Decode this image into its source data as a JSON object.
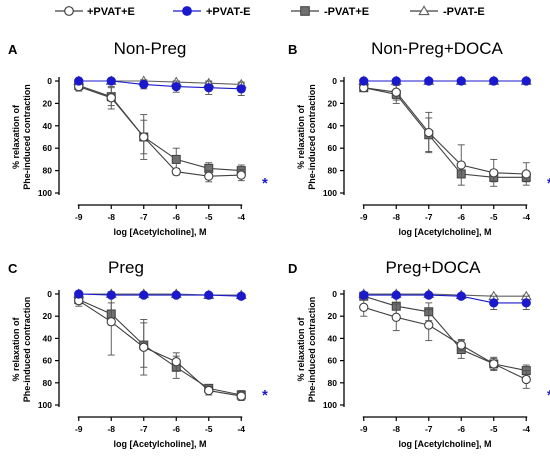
{
  "legend": {
    "entries": [
      {
        "label": "+PVAT+E",
        "marker": "circle-open",
        "color": "#404040"
      },
      {
        "label": "+PVAT-E",
        "marker": "circle-filled",
        "color": "#1a1acc"
      },
      {
        "label": "-PVAT+E",
        "marker": "square-filled",
        "color": "#707070"
      },
      {
        "label": "-PVAT-E",
        "marker": "triangle-open",
        "color": "#606060"
      }
    ]
  },
  "colors": {
    "pvat_plus_e": "#404040",
    "pvat_plus_minus_e": "#1a1acc",
    "pvat_minus_e": "#707070",
    "pvat_minus_minus_e": "#606060",
    "significance": "#1a1acc"
  },
  "chart_data": [
    {
      "type": "line",
      "letter": "A",
      "title": "Non-Preg",
      "xlabel": "log [Acetylcholine], M",
      "ylabel": [
        "% relaxation of",
        "Phe-induced contraction"
      ],
      "x": [
        -9,
        -8,
        -7,
        -6,
        -5,
        -4
      ],
      "xlim": [
        -9.3,
        -3.7
      ],
      "ylim": [
        0,
        100
      ],
      "y_inverted": true,
      "yticks": [
        0,
        20,
        40,
        60,
        80,
        100
      ],
      "significance": "*",
      "series": [
        {
          "name": "+PVAT+E",
          "values": [
            5,
            15,
            50,
            81,
            85,
            84
          ],
          "errors": [
            4,
            10,
            20,
            3,
            5,
            5
          ]
        },
        {
          "name": "+PVAT-E",
          "values": [
            0,
            0,
            3,
            5,
            6,
            7
          ],
          "errors": [
            1,
            1,
            4,
            5,
            6,
            6
          ]
        },
        {
          "name": "-PVAT+E",
          "values": [
            4,
            14,
            50,
            70,
            78,
            80
          ],
          "errors": [
            4,
            8,
            15,
            10,
            5,
            5
          ]
        },
        {
          "name": "-PVAT-E",
          "values": [
            0,
            0,
            0,
            1,
            2,
            3
          ],
          "errors": [
            1,
            1,
            1,
            1,
            1,
            1
          ]
        }
      ]
    },
    {
      "type": "line",
      "letter": "B",
      "title": "Non-Preg+DOCA",
      "xlabel": "log [Acetylcholine], M",
      "ylabel": [
        "% relaxation of",
        "Phe-induced contraction"
      ],
      "x": [
        -9,
        -8,
        -7,
        -6,
        -5,
        -4
      ],
      "xlim": [
        -9.3,
        -3.7
      ],
      "ylim": [
        0,
        100
      ],
      "y_inverted": true,
      "yticks": [
        0,
        20,
        40,
        60,
        80,
        100
      ],
      "significance": "*",
      "series": [
        {
          "name": "+PVAT+E",
          "values": [
            6,
            10,
            46,
            75,
            82,
            83
          ],
          "errors": [
            3,
            7,
            18,
            18,
            12,
            10
          ]
        },
        {
          "name": "+PVAT-E",
          "values": [
            0,
            0,
            0,
            0,
            0,
            0
          ],
          "errors": [
            0,
            0,
            0,
            0,
            0,
            0
          ]
        },
        {
          "name": "-PVAT+E",
          "values": [
            6,
            12,
            48,
            83,
            86,
            86
          ],
          "errors": [
            3,
            8,
            15,
            3,
            4,
            4
          ]
        },
        {
          "name": "-PVAT-E",
          "values": [
            0,
            0,
            0,
            0,
            0,
            0
          ],
          "errors": [
            0,
            0,
            0,
            0,
            0,
            0
          ]
        }
      ]
    },
    {
      "type": "line",
      "letter": "C",
      "title": "Preg",
      "xlabel": "log [Acetylcholine], M",
      "ylabel": [
        "% relaxation of",
        "Phe-induced contraction"
      ],
      "x": [
        -9,
        -8,
        -7,
        -6,
        -5,
        -4
      ],
      "xlim": [
        -9.3,
        -3.7
      ],
      "ylim": [
        0,
        100
      ],
      "y_inverted": true,
      "yticks": [
        0,
        20,
        40,
        60,
        80,
        100
      ],
      "significance": "*",
      "series": [
        {
          "name": "+PVAT+E",
          "values": [
            6,
            25,
            48,
            61,
            87,
            92
          ],
          "errors": [
            5,
            30,
            25,
            8,
            4,
            4
          ]
        },
        {
          "name": "+PVAT-E",
          "values": [
            0,
            1,
            1,
            1,
            1,
            2
          ],
          "errors": [
            1,
            1,
            1,
            1,
            1,
            1
          ]
        },
        {
          "name": "-PVAT+E",
          "values": [
            5,
            18,
            46,
            66,
            85,
            91
          ],
          "errors": [
            4,
            10,
            20,
            10,
            3,
            4
          ]
        },
        {
          "name": "-PVAT-E",
          "values": [
            0,
            0,
            0,
            0,
            1,
            1
          ],
          "errors": [
            1,
            1,
            1,
            1,
            1,
            1
          ]
        }
      ]
    },
    {
      "type": "line",
      "letter": "D",
      "title": "Preg+DOCA",
      "xlabel": "log [Acetylcholine], M",
      "ylabel": [
        "% relaxation of",
        "Phe-induced contraction"
      ],
      "x": [
        -9,
        -8,
        -7,
        -6,
        -5,
        -4
      ],
      "xlim": [
        -9.3,
        -3.7
      ],
      "ylim": [
        0,
        100
      ],
      "y_inverted": true,
      "yticks": [
        0,
        20,
        40,
        60,
        80,
        100
      ],
      "significance": "*",
      "series": [
        {
          "name": "+PVAT+E",
          "values": [
            12,
            21,
            28,
            46,
            63,
            77
          ],
          "errors": [
            8,
            12,
            14,
            5,
            5,
            8
          ]
        },
        {
          "name": "+PVAT-E",
          "values": [
            1,
            1,
            1,
            2,
            8,
            8
          ],
          "errors": [
            1,
            1,
            1,
            1,
            6,
            6
          ]
        },
        {
          "name": "-PVAT+E",
          "values": [
            2,
            11,
            16,
            50,
            63,
            69
          ],
          "errors": [
            2,
            8,
            8,
            8,
            6,
            5
          ]
        },
        {
          "name": "-PVAT-E",
          "values": [
            0,
            0,
            0,
            1,
            2,
            2
          ],
          "errors": [
            1,
            1,
            1,
            1,
            1,
            1
          ]
        }
      ]
    }
  ]
}
